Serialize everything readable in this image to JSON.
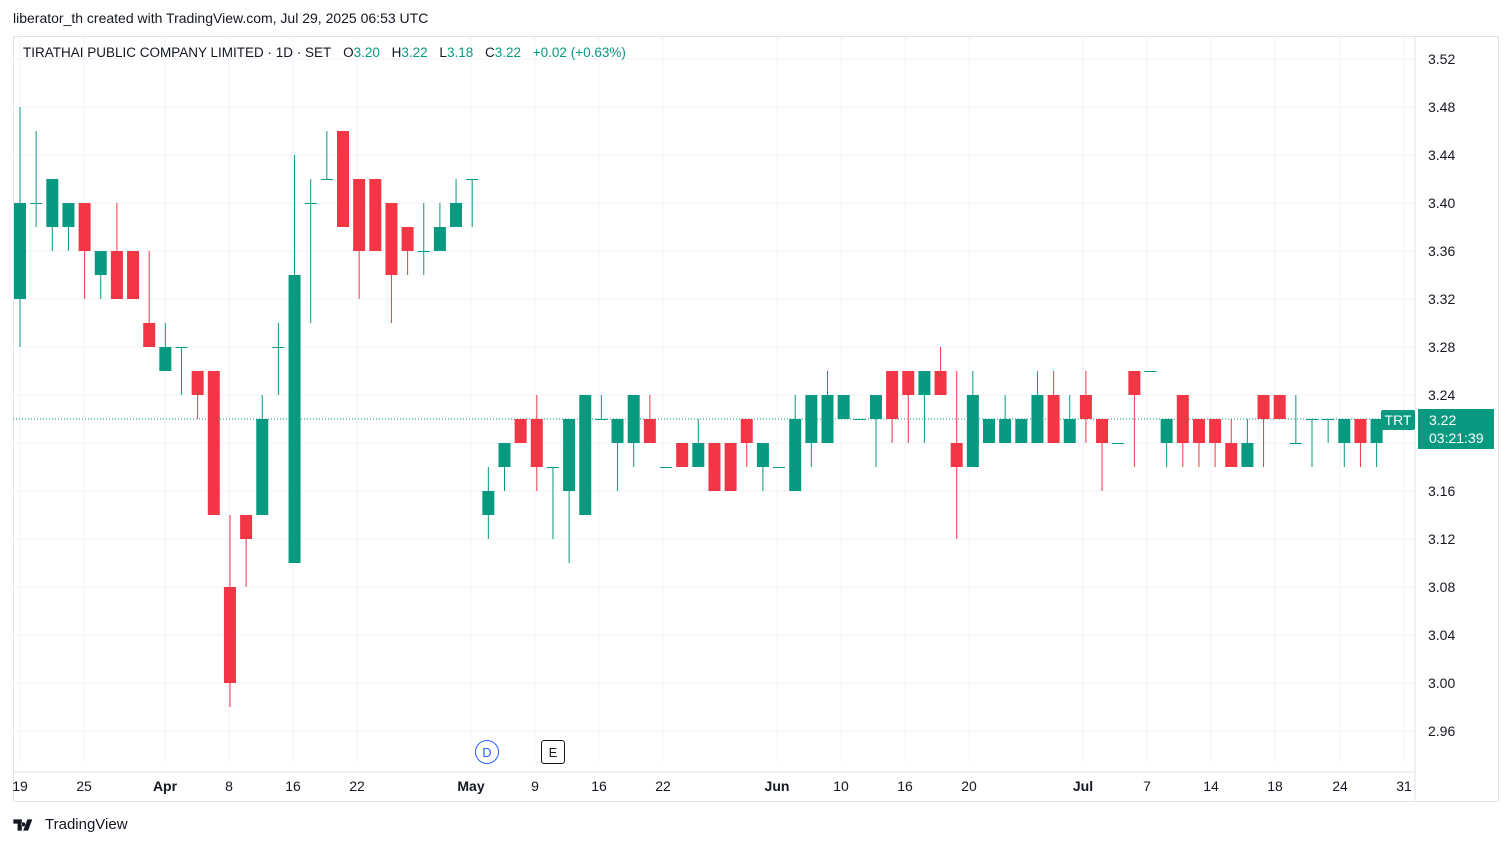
{
  "header": {
    "text": "liberator_th created with TradingView.com, Jul 29, 2025 06:53 UTC"
  },
  "legend": {
    "symbol": "TIRATHAI PUBLIC COMPANY LIMITED · 1D · SET",
    "o_label": "O",
    "o_value": "3.20",
    "h_label": "H",
    "h_value": "3.22",
    "l_label": "L",
    "l_value": "3.18",
    "c_label": "C",
    "c_value": "3.22",
    "change": "+0.02 (+0.63%)"
  },
  "markers": {
    "dividend": "D",
    "earnings": "E"
  },
  "price_tag": {
    "symbol": "TRT",
    "price": "3.22",
    "countdown": "03:21:39"
  },
  "footer": {
    "brand": "TradingView"
  },
  "colors": {
    "up": "#089981",
    "down": "#f23645",
    "grid": "#f0f3fa",
    "text": "#131722"
  },
  "chart_data": {
    "type": "candlestick",
    "x_tick_labels": [
      "19",
      "25",
      "Apr",
      "8",
      "16",
      "22",
      "May",
      "9",
      "16",
      "22",
      "Jun",
      "10",
      "16",
      "20",
      "Jul",
      "7",
      "14",
      "18",
      "24",
      "31"
    ],
    "y_ticks": [
      3.52,
      3.48,
      3.44,
      3.4,
      3.36,
      3.32,
      3.28,
      3.24,
      3.2,
      3.16,
      3.12,
      3.08,
      3.04,
      3.0,
      2.96
    ],
    "ylim": [
      2.93,
      3.55
    ],
    "last_price": 3.22,
    "candles": [
      {
        "o": 3.32,
        "h": 3.48,
        "l": 3.28,
        "c": 3.4
      },
      {
        "o": 3.4,
        "h": 3.46,
        "l": 3.38,
        "c": 3.4
      },
      {
        "o": 3.38,
        "h": 3.42,
        "l": 3.36,
        "c": 3.42
      },
      {
        "o": 3.38,
        "h": 3.4,
        "l": 3.36,
        "c": 3.4
      },
      {
        "o": 3.4,
        "h": 3.4,
        "l": 3.32,
        "c": 3.36
      },
      {
        "o": 3.34,
        "h": 3.36,
        "l": 3.32,
        "c": 3.36
      },
      {
        "o": 3.36,
        "h": 3.4,
        "l": 3.32,
        "c": 3.32
      },
      {
        "o": 3.36,
        "h": 3.36,
        "l": 3.32,
        "c": 3.32
      },
      {
        "o": 3.3,
        "h": 3.36,
        "l": 3.28,
        "c": 3.28
      },
      {
        "o": 3.26,
        "h": 3.3,
        "l": 3.26,
        "c": 3.28
      },
      {
        "o": 3.28,
        "h": 3.28,
        "l": 3.24,
        "c": 3.28
      },
      {
        "o": 3.26,
        "h": 3.26,
        "l": 3.22,
        "c": 3.24
      },
      {
        "o": 3.26,
        "h": 3.26,
        "l": 3.14,
        "c": 3.14
      },
      {
        "o": 3.08,
        "h": 3.14,
        "l": 2.98,
        "c": 3.0
      },
      {
        "o": 3.14,
        "h": 3.14,
        "l": 3.08,
        "c": 3.12
      },
      {
        "o": 3.14,
        "h": 3.24,
        "l": 3.14,
        "c": 3.22
      },
      {
        "o": 3.28,
        "h": 3.3,
        "l": 3.24,
        "c": 3.28
      },
      {
        "o": 3.1,
        "h": 3.44,
        "l": 3.1,
        "c": 3.34
      },
      {
        "o": 3.4,
        "h": 3.42,
        "l": 3.3,
        "c": 3.4
      },
      {
        "o": 3.42,
        "h": 3.46,
        "l": 3.42,
        "c": 3.42
      },
      {
        "o": 3.46,
        "h": 3.46,
        "l": 3.38,
        "c": 3.38
      },
      {
        "o": 3.42,
        "h": 3.42,
        "l": 3.32,
        "c": 3.36
      },
      {
        "o": 3.42,
        "h": 3.42,
        "l": 3.36,
        "c": 3.36
      },
      {
        "o": 3.4,
        "h": 3.4,
        "l": 3.3,
        "c": 3.34
      },
      {
        "o": 3.38,
        "h": 3.38,
        "l": 3.34,
        "c": 3.36
      },
      {
        "o": 3.36,
        "h": 3.4,
        "l": 3.34,
        "c": 3.36
      },
      {
        "o": 3.36,
        "h": 3.4,
        "l": 3.36,
        "c": 3.38
      },
      {
        "o": 3.38,
        "h": 3.42,
        "l": 3.38,
        "c": 3.4
      },
      {
        "o": 3.42,
        "h": 3.42,
        "l": 3.38,
        "c": 3.42
      },
      {
        "o": 3.14,
        "h": 3.18,
        "l": 3.12,
        "c": 3.16
      },
      {
        "o": 3.18,
        "h": 3.2,
        "l": 3.16,
        "c": 3.2
      },
      {
        "o": 3.22,
        "h": 3.22,
        "l": 3.2,
        "c": 3.2
      },
      {
        "o": 3.22,
        "h": 3.24,
        "l": 3.16,
        "c": 3.18
      },
      {
        "o": 3.18,
        "h": 3.18,
        "l": 3.12,
        "c": 3.18
      },
      {
        "o": 3.16,
        "h": 3.22,
        "l": 3.1,
        "c": 3.22
      },
      {
        "o": 3.14,
        "h": 3.24,
        "l": 3.14,
        "c": 3.24
      },
      {
        "o": 3.22,
        "h": 3.24,
        "l": 3.22,
        "c": 3.22
      },
      {
        "o": 3.2,
        "h": 3.22,
        "l": 3.16,
        "c": 3.22
      },
      {
        "o": 3.2,
        "h": 3.24,
        "l": 3.18,
        "c": 3.24
      },
      {
        "o": 3.22,
        "h": 3.24,
        "l": 3.2,
        "c": 3.2
      },
      {
        "o": 3.18,
        "h": 3.18,
        "l": 3.18,
        "c": 3.18
      },
      {
        "o": 3.2,
        "h": 3.2,
        "l": 3.18,
        "c": 3.18
      },
      {
        "o": 3.18,
        "h": 3.22,
        "l": 3.18,
        "c": 3.2
      },
      {
        "o": 3.2,
        "h": 3.2,
        "l": 3.16,
        "c": 3.16
      },
      {
        "o": 3.2,
        "h": 3.2,
        "l": 3.16,
        "c": 3.16
      },
      {
        "o": 3.22,
        "h": 3.22,
        "l": 3.18,
        "c": 3.2
      },
      {
        "o": 3.18,
        "h": 3.2,
        "l": 3.16,
        "c": 3.2
      },
      {
        "o": 3.18,
        "h": 3.18,
        "l": 3.18,
        "c": 3.18
      },
      {
        "o": 3.16,
        "h": 3.24,
        "l": 3.16,
        "c": 3.22
      },
      {
        "o": 3.2,
        "h": 3.24,
        "l": 3.18,
        "c": 3.24
      },
      {
        "o": 3.2,
        "h": 3.26,
        "l": 3.2,
        "c": 3.24
      },
      {
        "o": 3.22,
        "h": 3.24,
        "l": 3.22,
        "c": 3.24
      },
      {
        "o": 3.22,
        "h": 3.22,
        "l": 3.22,
        "c": 3.22
      },
      {
        "o": 3.22,
        "h": 3.24,
        "l": 3.18,
        "c": 3.24
      },
      {
        "o": 3.26,
        "h": 3.26,
        "l": 3.2,
        "c": 3.22
      },
      {
        "o": 3.26,
        "h": 3.26,
        "l": 3.2,
        "c": 3.24
      },
      {
        "o": 3.24,
        "h": 3.26,
        "l": 3.2,
        "c": 3.26
      },
      {
        "o": 3.26,
        "h": 3.28,
        "l": 3.24,
        "c": 3.24
      },
      {
        "o": 3.2,
        "h": 3.26,
        "l": 3.12,
        "c": 3.18
      },
      {
        "o": 3.18,
        "h": 3.26,
        "l": 3.18,
        "c": 3.24
      },
      {
        "o": 3.2,
        "h": 3.22,
        "l": 3.2,
        "c": 3.22
      },
      {
        "o": 3.2,
        "h": 3.24,
        "l": 3.2,
        "c": 3.22
      },
      {
        "o": 3.2,
        "h": 3.22,
        "l": 3.2,
        "c": 3.22
      },
      {
        "o": 3.2,
        "h": 3.26,
        "l": 3.2,
        "c": 3.24
      },
      {
        "o": 3.24,
        "h": 3.26,
        "l": 3.2,
        "c": 3.2
      },
      {
        "o": 3.2,
        "h": 3.24,
        "l": 3.2,
        "c": 3.22
      },
      {
        "o": 3.24,
        "h": 3.26,
        "l": 3.2,
        "c": 3.22
      },
      {
        "o": 3.22,
        "h": 3.22,
        "l": 3.16,
        "c": 3.2
      },
      {
        "o": 3.2,
        "h": 3.2,
        "l": 3.2,
        "c": 3.2
      },
      {
        "o": 3.26,
        "h": 3.26,
        "l": 3.18,
        "c": 3.24
      },
      {
        "o": 3.26,
        "h": 3.26,
        "l": 3.26,
        "c": 3.26
      },
      {
        "o": 3.2,
        "h": 3.22,
        "l": 3.18,
        "c": 3.22
      },
      {
        "o": 3.24,
        "h": 3.24,
        "l": 3.18,
        "c": 3.2
      },
      {
        "o": 3.22,
        "h": 3.22,
        "l": 3.18,
        "c": 3.2
      },
      {
        "o": 3.22,
        "h": 3.22,
        "l": 3.18,
        "c": 3.2
      },
      {
        "o": 3.2,
        "h": 3.22,
        "l": 3.18,
        "c": 3.18
      },
      {
        "o": 3.18,
        "h": 3.22,
        "l": 3.18,
        "c": 3.2
      },
      {
        "o": 3.24,
        "h": 3.24,
        "l": 3.18,
        "c": 3.22
      },
      {
        "o": 3.24,
        "h": 3.24,
        "l": 3.22,
        "c": 3.22
      },
      {
        "o": 3.2,
        "h": 3.24,
        "l": 3.2,
        "c": 3.2
      },
      {
        "o": 3.22,
        "h": 3.22,
        "l": 3.18,
        "c": 3.22
      },
      {
        "o": 3.22,
        "h": 3.22,
        "l": 3.2,
        "c": 3.22
      },
      {
        "o": 3.2,
        "h": 3.22,
        "l": 3.18,
        "c": 3.22
      },
      {
        "o": 3.22,
        "h": 3.22,
        "l": 3.18,
        "c": 3.2
      },
      {
        "o": 3.2,
        "h": 3.22,
        "l": 3.18,
        "c": 3.22
      }
    ]
  }
}
